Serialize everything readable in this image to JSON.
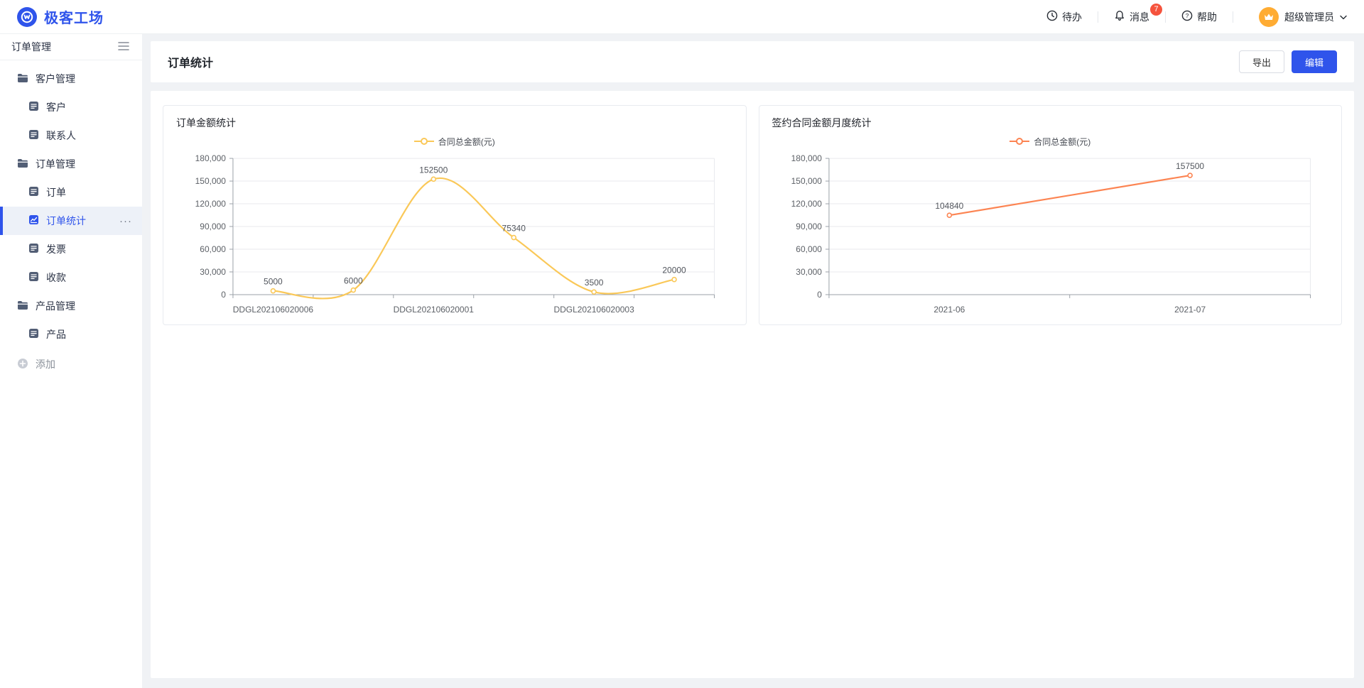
{
  "brand": {
    "name": "极客工场"
  },
  "header": {
    "items": [
      {
        "id": "todo",
        "label": "待办",
        "icon": "clock-icon",
        "badge": null
      },
      {
        "id": "messages",
        "label": "消息",
        "icon": "bell-icon",
        "badge": "7"
      },
      {
        "id": "help",
        "label": "帮助",
        "icon": "question-icon",
        "badge": null
      }
    ],
    "user": {
      "name": "超级管理员"
    }
  },
  "sidebar": {
    "title": "订单管理",
    "items": [
      {
        "label": "客户管理",
        "type": "folder",
        "level": 0,
        "active": false
      },
      {
        "label": "客户",
        "type": "doc",
        "level": 1,
        "active": false
      },
      {
        "label": "联系人",
        "type": "doc",
        "level": 1,
        "active": false
      },
      {
        "label": "订单管理",
        "type": "folder",
        "level": 0,
        "active": false
      },
      {
        "label": "订单",
        "type": "doc",
        "level": 1,
        "active": false
      },
      {
        "label": "订单统计",
        "type": "chart",
        "level": 1,
        "active": true
      },
      {
        "label": "发票",
        "type": "doc",
        "level": 1,
        "active": false
      },
      {
        "label": "收款",
        "type": "doc",
        "level": 1,
        "active": false
      },
      {
        "label": "产品管理",
        "type": "folder",
        "level": 0,
        "active": false
      },
      {
        "label": "产品",
        "type": "doc",
        "level": 1,
        "active": false
      }
    ],
    "add_label": "添加"
  },
  "page": {
    "title": "订单统计",
    "export_label": "导出",
    "edit_label": "编辑"
  },
  "colors": {
    "brand_blue": "#2f54eb",
    "badge_red": "#f5533d",
    "avatar_orange": "#ffac33",
    "chart_yellow": "#FAC858",
    "chart_orange": "#FC8452",
    "grid_line": "#e9eaee",
    "axis_line": "#9ba1a8"
  },
  "chart_data": [
    {
      "type": "line",
      "title": "订单金额统计",
      "legend": "合同总金额(元)",
      "color": "#FAC858",
      "smooth": true,
      "categories": [
        "DDGL202106020006",
        "",
        "DDGL202106020001",
        "",
        "DDGL202106020003",
        ""
      ],
      "values": [
        5000,
        6000,
        152500,
        75340,
        3500,
        20000
      ],
      "ylim": [
        0,
        180000
      ],
      "y_ticks": [
        180000,
        150000,
        120000,
        90000,
        60000,
        30000,
        0
      ],
      "y_tick_labels": [
        "180,000",
        "150,000",
        "120,000",
        "90,000",
        "60,000",
        "30,000",
        "0"
      ],
      "xlabel": "",
      "ylabel": "",
      "grid": true,
      "legend_position": "top"
    },
    {
      "type": "line",
      "title": "签约合同金额月度统计",
      "legend": "合同总金额(元)",
      "color": "#FC8452",
      "smooth": true,
      "categories": [
        "2021-06",
        "2021-07"
      ],
      "values": [
        104840,
        157500
      ],
      "ylim": [
        0,
        180000
      ],
      "y_ticks": [
        180000,
        150000,
        120000,
        90000,
        60000,
        30000,
        0
      ],
      "y_tick_labels": [
        "180,000",
        "150,000",
        "120,000",
        "90,000",
        "60,000",
        "30,000",
        "0"
      ],
      "xlabel": "",
      "ylabel": "",
      "grid": true,
      "legend_position": "top"
    }
  ]
}
